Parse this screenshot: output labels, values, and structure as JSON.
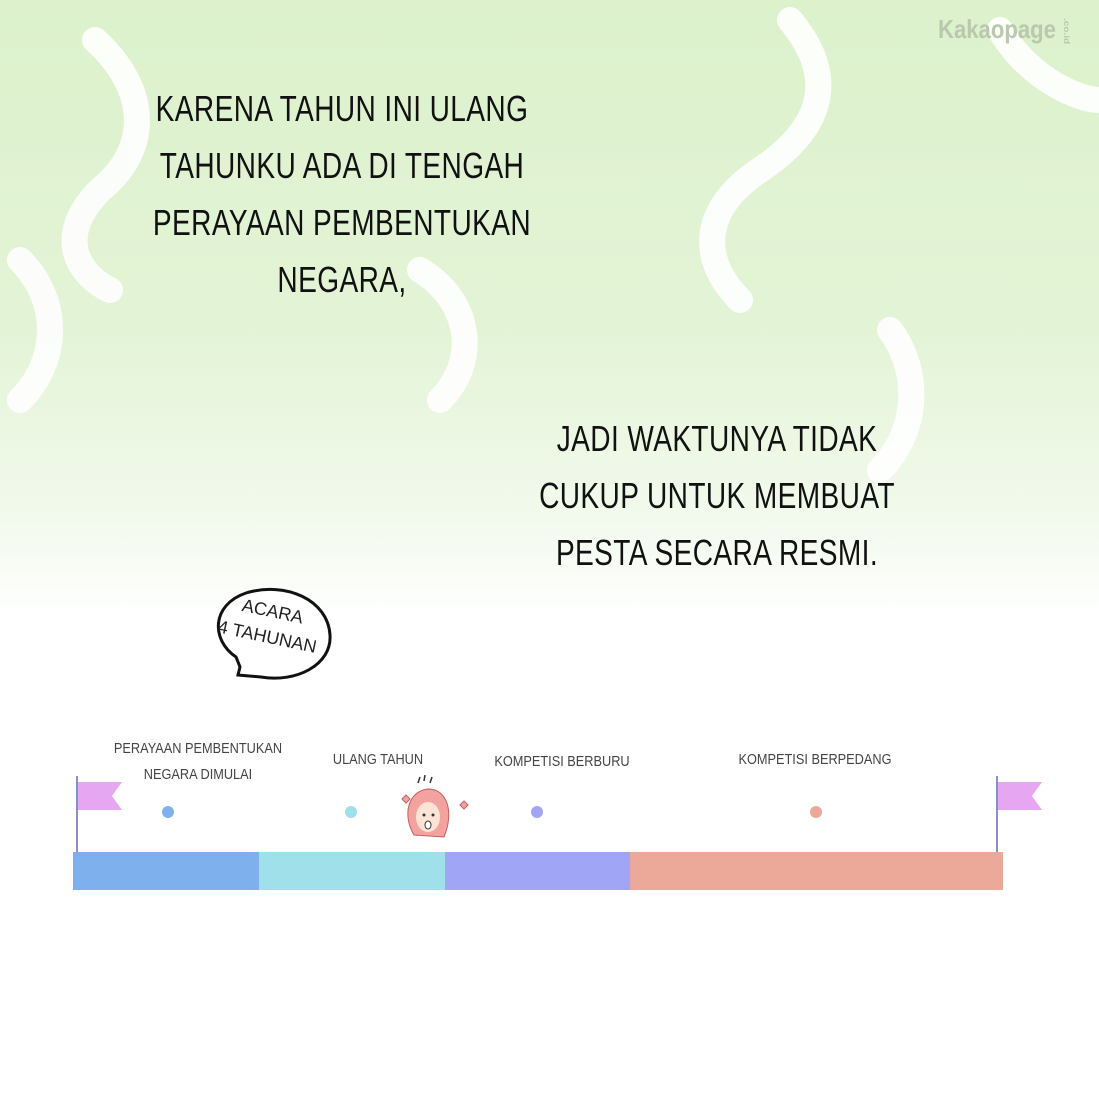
{
  "watermark": {
    "brand": "Kakaopage",
    "suffix": ".co.id"
  },
  "narration": [
    {
      "lines": [
        "KARENA TAHUN INI ULANG",
        "TAHUNKU ADA DI TENGAH",
        "PERAYAAN PEMBENTUKAN",
        "NEGARA,"
      ]
    },
    {
      "lines": [
        "JADI WAKTUNYA TIDAK",
        "CUKUP UNTUK MEMBUAT",
        "PESTA SECARA RESMI."
      ]
    }
  ],
  "speech_bubble": {
    "lines": [
      "ACARA",
      "4 TAHUNAN"
    ]
  },
  "timeline": {
    "events": [
      {
        "lines": [
          "PERAYAAN PEMBENTUKAN",
          "NEGARA DIMULAI"
        ],
        "color": "#7fb0ee"
      },
      {
        "lines": [
          "ULANG TAHUN"
        ],
        "color": "#9fe0ea"
      },
      {
        "lines": [
          "KOMPETISI BERBURU"
        ],
        "color": "#a0a6f5"
      },
      {
        "lines": [
          "KOMPETISI BERPEDANG"
        ],
        "color": "#eca898"
      }
    ],
    "flag_color": "#e7a6f2",
    "marker": "girl-face-icon"
  }
}
